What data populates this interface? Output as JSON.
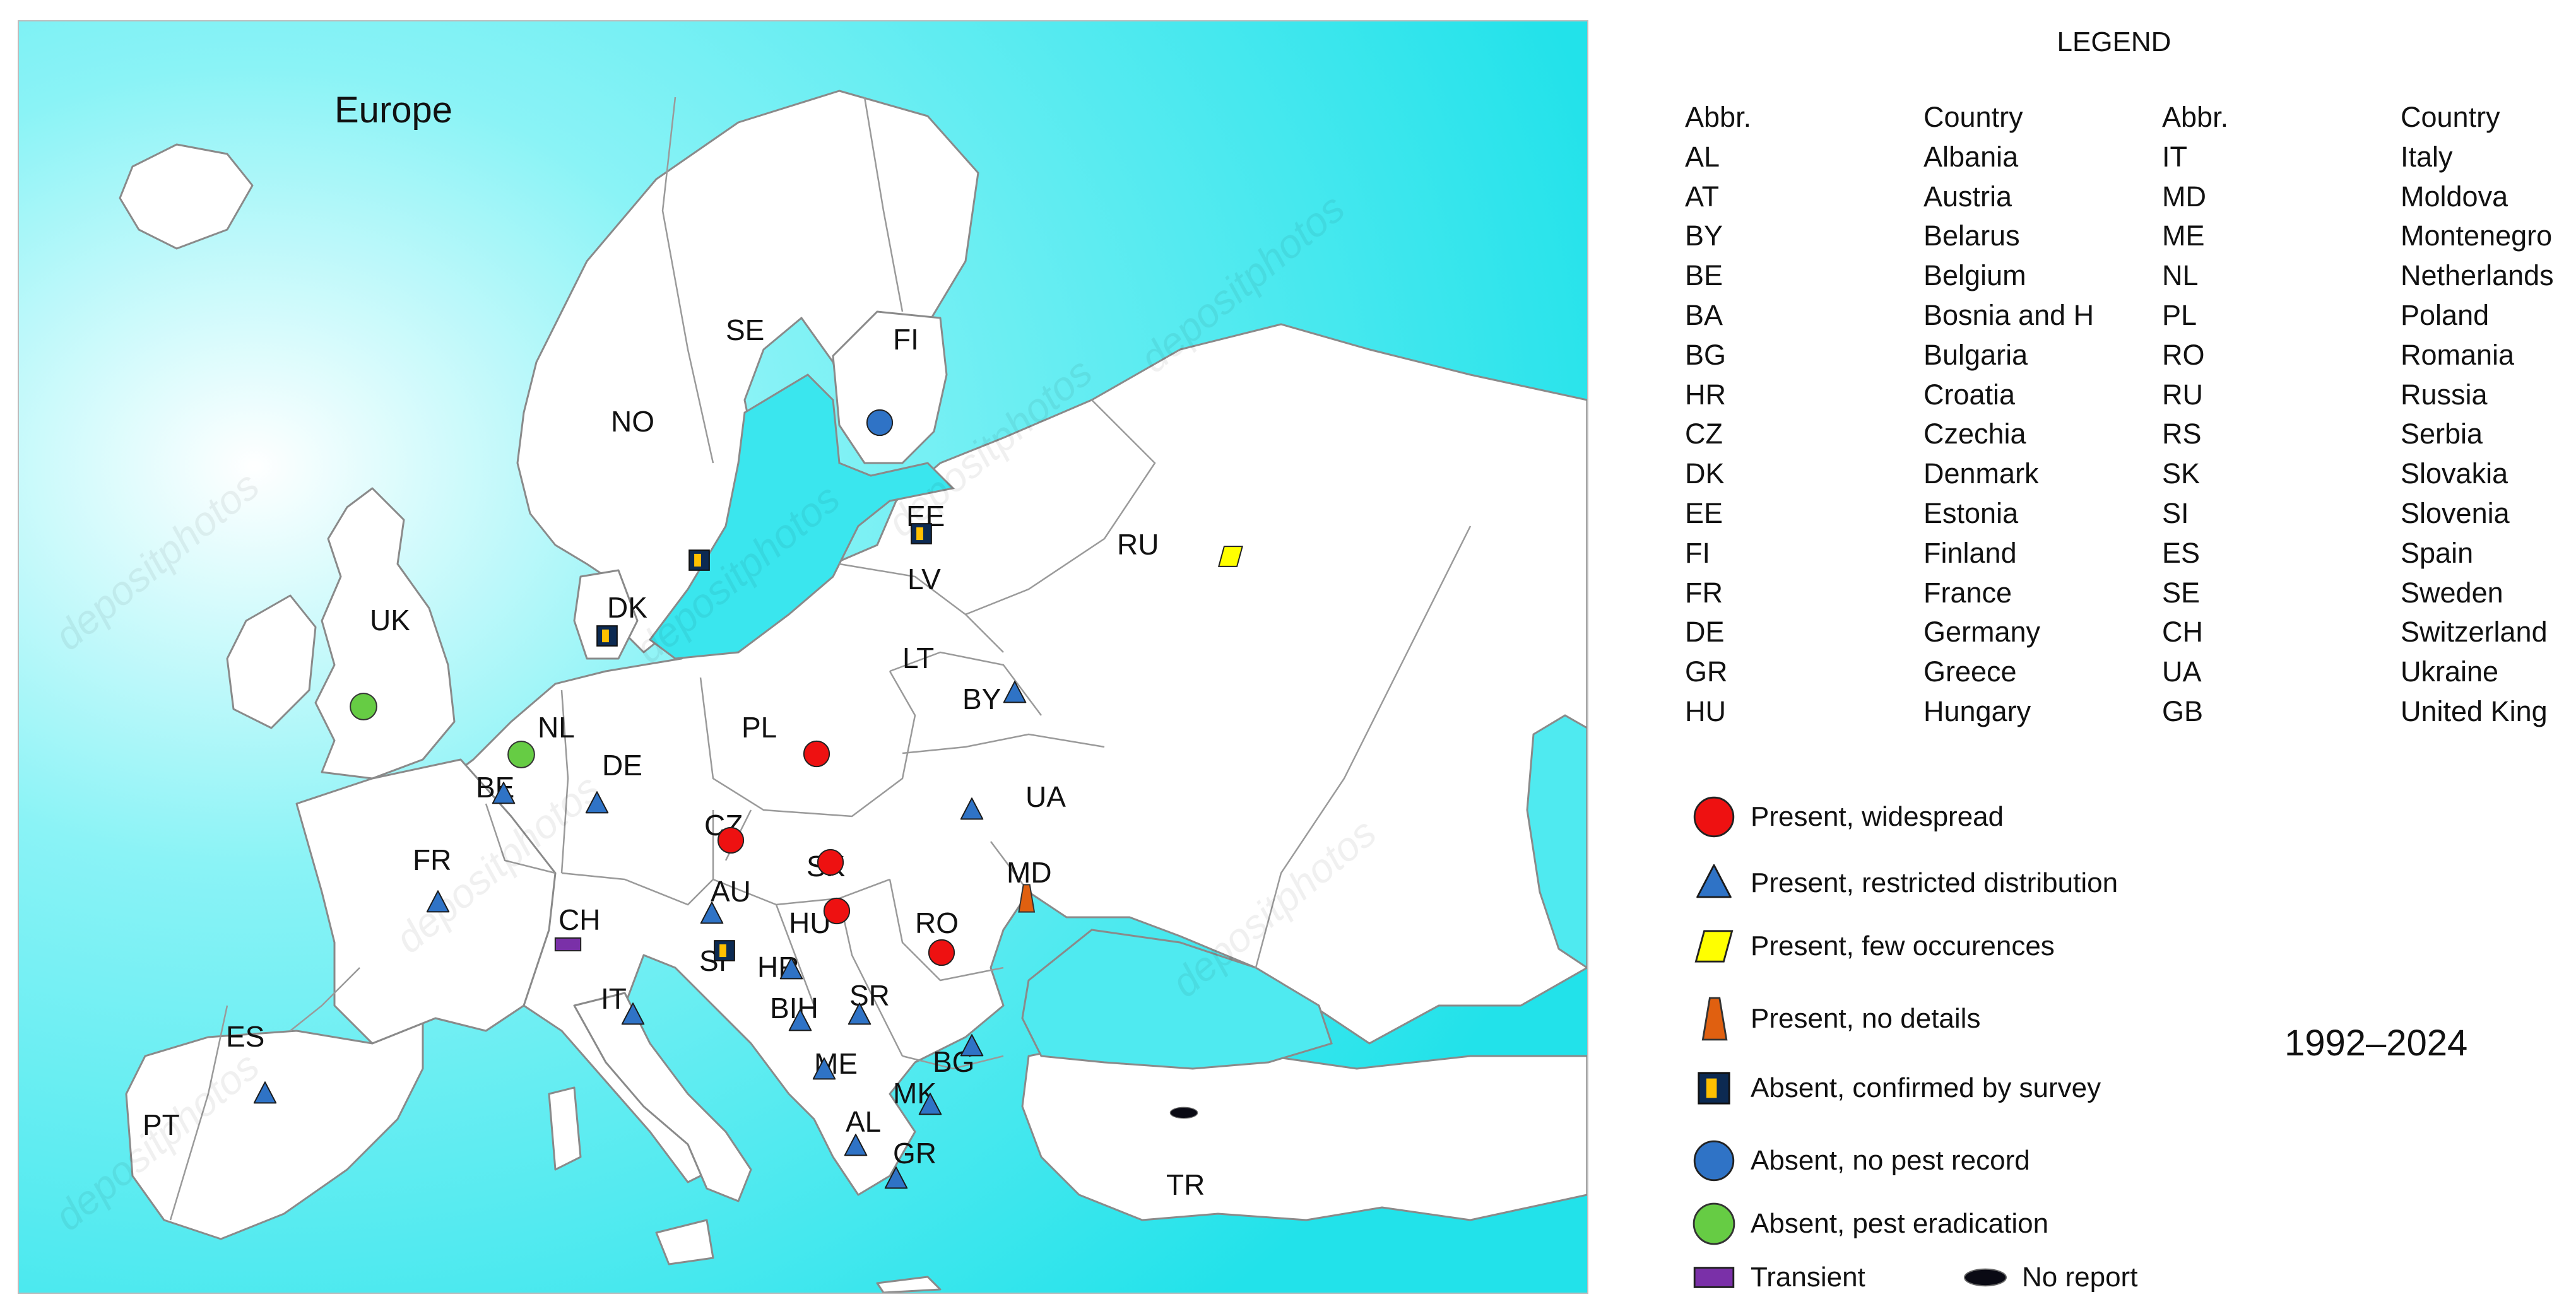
{
  "map": {
    "title": "Europe",
    "country_labels": [
      "SE",
      "FI",
      "NO",
      "EE",
      "RU",
      "LV",
      "DK",
      "UK",
      "LT",
      "BY",
      "NL",
      "PL",
      "DE",
      "BE",
      "UA",
      "CZ",
      "FR",
      "SK",
      "MD",
      "AU",
      "HU",
      "RO",
      "CH",
      "SI",
      "HR",
      "IT",
      "BIH",
      "SR",
      "ES",
      "ME",
      "BG",
      "MK",
      "PT",
      "AL",
      "GR",
      "TR"
    ],
    "watermark": "depositphotos",
    "markers": [
      {
        "country": "FI",
        "status": "absent_no_record"
      },
      {
        "country": "EE",
        "status": "absent_confirmed"
      },
      {
        "country": "SE",
        "status": "absent_confirmed"
      },
      {
        "country": "DK",
        "status": "absent_confirmed"
      },
      {
        "country": "RU",
        "status": "present_few"
      },
      {
        "country": "UK",
        "status": "absent_eradication"
      },
      {
        "country": "NL",
        "status": "absent_eradication"
      },
      {
        "country": "BE",
        "status": "present_restricted"
      },
      {
        "country": "DE",
        "status": "present_restricted"
      },
      {
        "country": "PL",
        "status": "present_widespread"
      },
      {
        "country": "BY",
        "status": "present_restricted"
      },
      {
        "country": "UA",
        "status": "present_restricted"
      },
      {
        "country": "CZ",
        "status": "present_widespread"
      },
      {
        "country": "SK",
        "status": "present_widespread"
      },
      {
        "country": "HU",
        "status": "present_widespread"
      },
      {
        "country": "RO",
        "status": "present_widespread"
      },
      {
        "country": "MD",
        "status": "present_no_details"
      },
      {
        "country": "FR",
        "status": "present_restricted"
      },
      {
        "country": "AU",
        "status": "present_restricted"
      },
      {
        "country": "CH",
        "status": "transient"
      },
      {
        "country": "SI",
        "status": "absent_confirmed"
      },
      {
        "country": "HR",
        "status": "present_restricted"
      },
      {
        "country": "IT",
        "status": "present_restricted"
      },
      {
        "country": "BIH",
        "status": "present_restricted"
      },
      {
        "country": "SR",
        "status": "present_restricted"
      },
      {
        "country": "BG",
        "status": "present_restricted"
      },
      {
        "country": "ME",
        "status": "present_restricted"
      },
      {
        "country": "MK",
        "status": "present_restricted"
      },
      {
        "country": "AL",
        "status": "present_restricted"
      },
      {
        "country": "GR",
        "status": "present_restricted"
      },
      {
        "country": "ES",
        "status": "present_restricted"
      },
      {
        "country": "TR",
        "status": "no_report"
      }
    ],
    "colors": {
      "sea": "#2ee6ee",
      "land": "#ffffff",
      "border": "#8a8a8a",
      "red": "#ee1111",
      "blue": "#2f73c6",
      "yellow": "#ffff00",
      "orange": "#e06010",
      "navy": "#0c2a52",
      "gold": "#ffc000",
      "green": "#66cc44",
      "purple": "#7a30a8",
      "black": "#0a0a14"
    }
  },
  "legend": {
    "title": "LEGEND",
    "headers": {
      "abbr": "Abbr.",
      "country": "Country"
    },
    "left": [
      {
        "abbr": "AL",
        "country": "Albania"
      },
      {
        "abbr": "AT",
        "country": "Austria"
      },
      {
        "abbr": "BY",
        "country": "Belarus"
      },
      {
        "abbr": "BE",
        "country": "Belgium"
      },
      {
        "abbr": "BA",
        "country": "Bosnia and H"
      },
      {
        "abbr": "BG",
        "country": "Bulgaria"
      },
      {
        "abbr": "HR",
        "country": "Croatia"
      },
      {
        "abbr": "CZ",
        "country": "Czechia"
      },
      {
        "abbr": "DK",
        "country": "Denmark"
      },
      {
        "abbr": "EE",
        "country": "Estonia"
      },
      {
        "abbr": "FI",
        "country": "Finland"
      },
      {
        "abbr": "FR",
        "country": "France"
      },
      {
        "abbr": "DE",
        "country": "Germany"
      },
      {
        "abbr": "GR",
        "country": "Greece"
      },
      {
        "abbr": "HU",
        "country": "Hungary"
      }
    ],
    "right": [
      {
        "abbr": "IT",
        "country": "Italy"
      },
      {
        "abbr": "MD",
        "country": "Moldova"
      },
      {
        "abbr": "ME",
        "country": "Montenegro"
      },
      {
        "abbr": "NL",
        "country": "Netherlands"
      },
      {
        "abbr": "PL",
        "country": "Poland"
      },
      {
        "abbr": "RO",
        "country": "Romania"
      },
      {
        "abbr": "RU",
        "country": "Russia"
      },
      {
        "abbr": "RS",
        "country": "Serbia"
      },
      {
        "abbr": "SK",
        "country": "Slovakia"
      },
      {
        "abbr": "SI",
        "country": "Slovenia"
      },
      {
        "abbr": "ES",
        "country": "Spain"
      },
      {
        "abbr": "SE",
        "country": "Sweden"
      },
      {
        "abbr": "CH",
        "country": "Switzerland"
      },
      {
        "abbr": "UA",
        "country": "Ukraine"
      },
      {
        "abbr": "GB",
        "country": "United King"
      }
    ],
    "symbols": [
      {
        "key": "present_widespread",
        "label": "Present, widespread"
      },
      {
        "key": "present_restricted",
        "label": "Present, restricted distribution"
      },
      {
        "key": "present_few",
        "label": "Present, few occurences"
      },
      {
        "key": "present_no_details",
        "label": "Present, no details"
      },
      {
        "key": "absent_confirmed",
        "label": "Absent, confirmed by survey"
      },
      {
        "key": "absent_no_record",
        "label": "Absent, no pest record"
      },
      {
        "key": "absent_eradication",
        "label": "Absent, pest eradication"
      },
      {
        "key": "transient",
        "label": "Transient"
      },
      {
        "key": "no_report",
        "label": "No report"
      }
    ]
  },
  "period": "1992–2024"
}
